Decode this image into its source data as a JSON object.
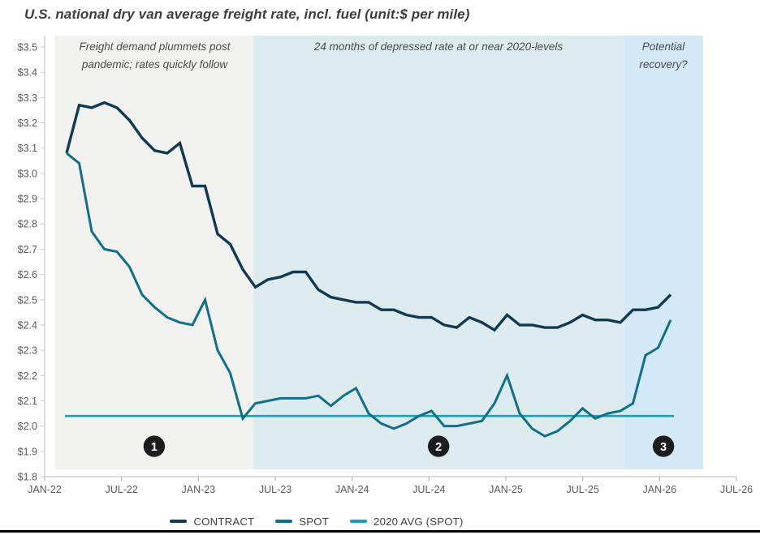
{
  "chart_data": {
    "type": "line",
    "title": "U.S. national dry van average freight rate, incl. fuel (unit:$ per mile)",
    "unit": "$ per mile",
    "grid": false,
    "legend_position": "bottom",
    "ylim": [
      1.8,
      3.5
    ],
    "y_tick_labels": [
      "$3.5",
      "$3.4",
      "$3.3",
      "$3.2",
      "$3.1",
      "$3.0",
      "$2.9",
      "$2.8",
      "$2.7",
      "$2.6",
      "$2.5",
      "$2.4",
      "$2.3",
      "$2.2",
      "$2.1",
      "$2.0",
      "$1.9",
      "$1.8"
    ],
    "x_tick_labels": [
      "JAN-22",
      "JUL-22",
      "JAN-23",
      "JUL-23",
      "JAN-24",
      "JUL-24",
      "JAN-25",
      "JUL-25",
      "JAN-26",
      "JUL-26"
    ],
    "months": [
      "FEB-22",
      "MAR-22",
      "APR-22",
      "MAY-22",
      "JUN-22",
      "JUL-22",
      "AUG-22",
      "SEP-22",
      "OCT-22",
      "NOV-22",
      "DEC-22",
      "JAN-23",
      "FEB-23",
      "MAR-23",
      "APR-23",
      "MAY-23",
      "JUN-23",
      "JUL-23",
      "AUG-23",
      "SEP-23",
      "OCT-23",
      "NOV-23",
      "DEC-23",
      "JAN-24",
      "FEB-24",
      "MAR-24",
      "APR-24",
      "MAY-24",
      "JUN-24",
      "JUL-24",
      "AUG-24",
      "SEP-24",
      "OCT-24",
      "NOV-24",
      "DEC-24",
      "JAN-25",
      "FEB-25",
      "MAR-25",
      "APR-25",
      "MAY-25",
      "JUN-25",
      "JUL-25",
      "AUG-25",
      "SEP-25",
      "OCT-25",
      "NOV-25",
      "DEC-25",
      "JAN-26",
      "FEB-26"
    ],
    "series": [
      {
        "name": "CONTRACT",
        "color": "#113a52",
        "values": [
          3.08,
          3.27,
          3.26,
          3.28,
          3.26,
          3.21,
          3.14,
          3.09,
          3.08,
          3.12,
          2.95,
          2.95,
          2.76,
          2.72,
          2.62,
          2.55,
          2.58,
          2.59,
          2.61,
          2.61,
          2.54,
          2.51,
          2.5,
          2.49,
          2.49,
          2.46,
          2.46,
          2.44,
          2.43,
          2.43,
          2.4,
          2.39,
          2.43,
          2.41,
          2.38,
          2.44,
          2.4,
          2.4,
          2.39,
          2.39,
          2.41,
          2.44,
          2.42,
          2.42,
          2.41,
          2.46,
          2.46,
          2.47,
          2.52
        ]
      },
      {
        "name": "SPOT",
        "color": "#136f87",
        "values": [
          3.08,
          3.04,
          2.77,
          2.7,
          2.69,
          2.63,
          2.52,
          2.47,
          2.43,
          2.41,
          2.4,
          2.5,
          2.3,
          2.21,
          2.03,
          2.09,
          2.1,
          2.11,
          2.11,
          2.11,
          2.12,
          2.08,
          2.12,
          2.15,
          2.05,
          2.01,
          1.99,
          2.01,
          2.04,
          2.06,
          2.0,
          2.0,
          2.01,
          2.02,
          2.09,
          2.2,
          2.05,
          1.99,
          1.96,
          1.98,
          2.02,
          2.07,
          2.03,
          2.05,
          2.06,
          2.09,
          2.28,
          2.31,
          2.42
        ]
      },
      {
        "name": "2020 AVG (SPOT)",
        "color": "#16a0b2",
        "type": "constant",
        "value": 2.04
      }
    ],
    "marker_value": 1.92,
    "regions": [
      {
        "marker": "1",
        "label": "Freight demand plummets post pandemic; rates quickly follow",
        "color": "#f1f1ef",
        "month_start": 0.8,
        "month_end": 16.3
      },
      {
        "marker": "2",
        "label": "24 months of depressed rate at or near 2020-levels",
        "color": "#ddeaee",
        "month_start": 16.3,
        "month_end": 45.2
      },
      {
        "marker": "3",
        "label": "Potential recovery?",
        "color": "#d3e9f7",
        "month_start": 45.2,
        "month_end": 51.4
      }
    ]
  }
}
